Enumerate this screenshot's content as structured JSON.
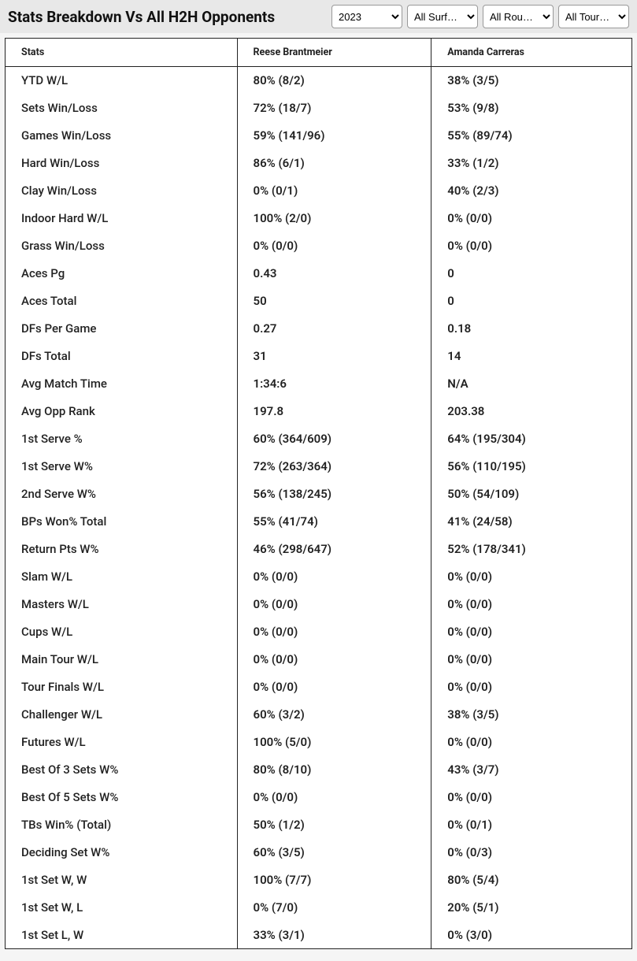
{
  "title": "Stats Breakdown Vs All H2H Opponents",
  "filters": {
    "year": {
      "selected": "2023",
      "options": [
        "2023"
      ]
    },
    "surface": {
      "selected": "All Surf…",
      "options": [
        "All Surf…"
      ]
    },
    "round": {
      "selected": "All Rou…",
      "options": [
        "All Rou…"
      ]
    },
    "tour": {
      "selected": "All Tour…",
      "options": [
        "All Tour…"
      ]
    }
  },
  "columns": {
    "stats": "Stats",
    "player1": "Reese Brantmeier",
    "player2": "Amanda Carreras"
  },
  "rows": [
    {
      "label": "YTD W/L",
      "p1": "80% (8/2)",
      "p2": "38% (3/5)"
    },
    {
      "label": "Sets Win/Loss",
      "p1": "72% (18/7)",
      "p2": "53% (9/8)"
    },
    {
      "label": "Games Win/Loss",
      "p1": "59% (141/96)",
      "p2": "55% (89/74)"
    },
    {
      "label": "Hard Win/Loss",
      "p1": "86% (6/1)",
      "p2": "33% (1/2)"
    },
    {
      "label": "Clay Win/Loss",
      "p1": "0% (0/1)",
      "p2": "40% (2/3)"
    },
    {
      "label": "Indoor Hard W/L",
      "p1": "100% (2/0)",
      "p2": "0% (0/0)"
    },
    {
      "label": "Grass Win/Loss",
      "p1": "0% (0/0)",
      "p2": "0% (0/0)"
    },
    {
      "label": "Aces Pg",
      "p1": "0.43",
      "p2": "0"
    },
    {
      "label": "Aces Total",
      "p1": "50",
      "p2": "0"
    },
    {
      "label": "DFs Per Game",
      "p1": "0.27",
      "p2": "0.18"
    },
    {
      "label": "DFs Total",
      "p1": "31",
      "p2": "14"
    },
    {
      "label": "Avg Match Time",
      "p1": "1:34:6",
      "p2": "N/A"
    },
    {
      "label": "Avg Opp Rank",
      "p1": "197.8",
      "p2": "203.38"
    },
    {
      "label": "1st Serve %",
      "p1": "60% (364/609)",
      "p2": "64% (195/304)"
    },
    {
      "label": "1st Serve W%",
      "p1": "72% (263/364)",
      "p2": "56% (110/195)"
    },
    {
      "label": "2nd Serve W%",
      "p1": "56% (138/245)",
      "p2": "50% (54/109)"
    },
    {
      "label": "BPs Won% Total",
      "p1": "55% (41/74)",
      "p2": "41% (24/58)"
    },
    {
      "label": "Return Pts W%",
      "p1": "46% (298/647)",
      "p2": "52% (178/341)"
    },
    {
      "label": "Slam W/L",
      "p1": "0% (0/0)",
      "p2": "0% (0/0)"
    },
    {
      "label": "Masters W/L",
      "p1": "0% (0/0)",
      "p2": "0% (0/0)"
    },
    {
      "label": "Cups W/L",
      "p1": "0% (0/0)",
      "p2": "0% (0/0)"
    },
    {
      "label": "Main Tour W/L",
      "p1": "0% (0/0)",
      "p2": "0% (0/0)"
    },
    {
      "label": "Tour Finals W/L",
      "p1": "0% (0/0)",
      "p2": "0% (0/0)"
    },
    {
      "label": "Challenger W/L",
      "p1": "60% (3/2)",
      "p2": "38% (3/5)"
    },
    {
      "label": "Futures W/L",
      "p1": "100% (5/0)",
      "p2": "0% (0/0)"
    },
    {
      "label": "Best Of 3 Sets W%",
      "p1": "80% (8/10)",
      "p2": "43% (3/7)"
    },
    {
      "label": "Best Of 5 Sets W%",
      "p1": "0% (0/0)",
      "p2": "0% (0/0)"
    },
    {
      "label": "TBs Win% (Total)",
      "p1": "50% (1/2)",
      "p2": "0% (0/1)"
    },
    {
      "label": "Deciding Set W%",
      "p1": "60% (3/5)",
      "p2": "0% (0/3)"
    },
    {
      "label": "1st Set W, W",
      "p1": "100% (7/7)",
      "p2": "80% (5/4)"
    },
    {
      "label": "1st Set W, L",
      "p1": "0% (7/0)",
      "p2": "20% (5/1)"
    },
    {
      "label": "1st Set L, W",
      "p1": "33% (3/1)",
      "p2": "0% (3/0)"
    }
  ]
}
